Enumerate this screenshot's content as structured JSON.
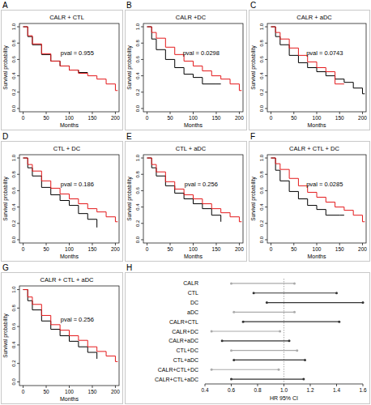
{
  "chart_data": [
    {
      "type": "line",
      "panel_label": "A",
      "title": "CALR + CTL",
      "annotation": "pval = 0.955",
      "x_label": "Months",
      "y_label": "Survival probability",
      "line_style": "step",
      "xlim": [
        -8,
        208
      ],
      "ylim": [
        -0.04,
        1.04
      ],
      "xticks": [
        0,
        50,
        100,
        150,
        200
      ],
      "yticks": [
        {
          "value": 0,
          "label": "0.0"
        },
        0.2,
        0.4,
        0.6,
        0.8,
        {
          "value": 1,
          "label": "1.0"
        }
      ],
      "series": [
        {
          "color": "#000000",
          "x": [
            0,
            10,
            20,
            40,
            60,
            80,
            100,
            120,
            140
          ],
          "values": [
            1,
            0.88,
            0.78,
            0.66,
            0.58,
            0.52,
            0.47,
            0.44,
            0.44
          ]
        },
        {
          "color": "#e41a1c",
          "x": [
            0,
            10,
            20,
            40,
            60,
            80,
            100,
            120,
            140,
            160,
            180,
            200,
            205
          ],
          "values": [
            1,
            0.89,
            0.79,
            0.67,
            0.58,
            0.52,
            0.47,
            0.43,
            0.4,
            0.36,
            0.3,
            0.22,
            0.22
          ]
        }
      ]
    },
    {
      "type": "line",
      "panel_label": "B",
      "title": "CALR +DC",
      "annotation": "pval = 0.0298",
      "x_label": "Months",
      "y_label": "Survival probability",
      "line_style": "step",
      "xlim": [
        -8,
        208
      ],
      "ylim": [
        -0.04,
        1.04
      ],
      "xticks": [
        0,
        50,
        100,
        150,
        200
      ],
      "yticks": [
        {
          "value": 0,
          "label": "0.0"
        },
        0.2,
        0.4,
        0.6,
        0.8,
        {
          "value": 1,
          "label": "1.0"
        }
      ],
      "series": [
        {
          "color": "#000000",
          "x": [
            0,
            10,
            20,
            40,
            60,
            80,
            100,
            120,
            150,
            160
          ],
          "values": [
            1,
            0.85,
            0.72,
            0.6,
            0.5,
            0.42,
            0.38,
            0.3,
            0.3,
            0.3
          ]
        },
        {
          "color": "#e41a1c",
          "x": [
            0,
            10,
            20,
            40,
            60,
            80,
            100,
            120,
            140,
            160,
            180,
            200,
            205
          ],
          "values": [
            1,
            0.93,
            0.86,
            0.75,
            0.66,
            0.58,
            0.52,
            0.46,
            0.4,
            0.36,
            0.3,
            0.22,
            0.22
          ]
        }
      ]
    },
    {
      "type": "line",
      "panel_label": "C",
      "title": "CALR + aDC",
      "annotation": "pval = 0.0743",
      "x_label": "Months",
      "y_label": "Survival probability",
      "line_style": "step",
      "xlim": [
        -8,
        208
      ],
      "ylim": [
        -0.04,
        1.04
      ],
      "xticks": [
        0,
        50,
        100,
        150,
        200
      ],
      "yticks": [
        {
          "value": 0,
          "label": "0.0"
        },
        0.2,
        0.4,
        0.6,
        0.8,
        {
          "value": 1,
          "label": "1.0"
        }
      ],
      "series": [
        {
          "color": "#000000",
          "x": [
            0,
            10,
            20,
            40,
            60,
            80,
            100,
            120,
            140,
            160,
            180,
            200,
            205
          ],
          "values": [
            1,
            0.88,
            0.78,
            0.65,
            0.56,
            0.5,
            0.45,
            0.4,
            0.36,
            0.32,
            0.25,
            0.18,
            0.18
          ]
        },
        {
          "color": "#e41a1c",
          "x": [
            0,
            10,
            20,
            40,
            60,
            80,
            100,
            120,
            140,
            160
          ],
          "values": [
            1,
            0.93,
            0.85,
            0.74,
            0.65,
            0.57,
            0.5,
            0.45,
            0.3,
            0.3
          ]
        }
      ]
    },
    {
      "type": "line",
      "panel_label": "D",
      "title": "CTL + DC",
      "annotation": "pval = 0.186",
      "x_label": "Months",
      "y_label": "Survival probability",
      "line_style": "step",
      "xlim": [
        -8,
        208
      ],
      "ylim": [
        -0.04,
        1.04
      ],
      "xticks": [
        0,
        50,
        100,
        150,
        200
      ],
      "yticks": [
        {
          "value": 0,
          "label": "0.0"
        },
        0.2,
        0.4,
        0.6,
        0.8,
        {
          "value": 1,
          "label": "1.0"
        }
      ],
      "series": [
        {
          "color": "#000000",
          "x": [
            0,
            10,
            20,
            40,
            60,
            80,
            100,
            120,
            140,
            160
          ],
          "values": [
            1,
            0.88,
            0.78,
            0.64,
            0.55,
            0.48,
            0.42,
            0.32,
            0.25,
            0.15
          ]
        },
        {
          "color": "#e41a1c",
          "x": [
            0,
            10,
            20,
            40,
            60,
            80,
            100,
            120,
            140,
            160,
            180,
            200,
            205
          ],
          "values": [
            1,
            0.92,
            0.84,
            0.72,
            0.63,
            0.56,
            0.5,
            0.44,
            0.38,
            0.34,
            0.28,
            0.22,
            0.22
          ]
        }
      ]
    },
    {
      "type": "line",
      "panel_label": "E",
      "title": "CTL + aDC",
      "annotation": "pval = 0.256",
      "x_label": "Months",
      "y_label": "Survival probability",
      "line_style": "step",
      "xlim": [
        -8,
        208
      ],
      "ylim": [
        -0.04,
        1.04
      ],
      "xticks": [
        0,
        50,
        100,
        150,
        200
      ],
      "yticks": [
        {
          "value": 0,
          "label": "0.0"
        },
        0.2,
        0.4,
        0.6,
        0.8,
        {
          "value": 1,
          "label": "1.0"
        }
      ],
      "series": [
        {
          "color": "#000000",
          "x": [
            0,
            10,
            20,
            40,
            60,
            80,
            100,
            120,
            140,
            160
          ],
          "values": [
            1,
            0.88,
            0.78,
            0.66,
            0.57,
            0.5,
            0.44,
            0.38,
            0.3,
            0.22
          ]
        },
        {
          "color": "#e41a1c",
          "x": [
            0,
            10,
            20,
            40,
            60,
            80,
            100,
            120,
            140,
            160,
            180,
            200,
            205
          ],
          "values": [
            1,
            0.92,
            0.83,
            0.71,
            0.62,
            0.55,
            0.5,
            0.44,
            0.38,
            0.33,
            0.28,
            0.22,
            0.22
          ]
        }
      ]
    },
    {
      "type": "line",
      "panel_label": "F",
      "title": "CALR + CTL + DC",
      "annotation": "pval = 0.0285",
      "x_label": "Months",
      "y_label": "Survival probability",
      "line_style": "step",
      "xlim": [
        -8,
        208
      ],
      "ylim": [
        -0.04,
        1.04
      ],
      "xticks": [
        0,
        50,
        100,
        150,
        200
      ],
      "yticks": [
        {
          "value": 0,
          "label": "0.0"
        },
        0.2,
        0.4,
        0.6,
        0.8,
        {
          "value": 1,
          "label": "1.0"
        }
      ],
      "series": [
        {
          "color": "#000000",
          "x": [
            0,
            10,
            20,
            40,
            60,
            80,
            100,
            120,
            150,
            160
          ],
          "values": [
            1,
            0.85,
            0.72,
            0.59,
            0.5,
            0.42,
            0.37,
            0.3,
            0.3,
            0.3
          ]
        },
        {
          "color": "#e41a1c",
          "x": [
            0,
            10,
            20,
            40,
            60,
            80,
            100,
            120,
            140,
            160,
            180,
            200,
            205
          ],
          "values": [
            1,
            0.93,
            0.86,
            0.75,
            0.66,
            0.58,
            0.52,
            0.46,
            0.4,
            0.36,
            0.3,
            0.22,
            0.22
          ]
        }
      ]
    },
    {
      "type": "line",
      "panel_label": "G",
      "title": "CALR + CTL + aDC",
      "annotation": "pval = 0.256",
      "x_label": "Months",
      "y_label": "Survival probability",
      "line_style": "step",
      "xlim": [
        -8,
        208
      ],
      "ylim": [
        -0.04,
        1.04
      ],
      "xticks": [
        0,
        50,
        100,
        150,
        200
      ],
      "yticks": [
        {
          "value": 0,
          "label": "0.0"
        },
        0.2,
        0.4,
        0.6,
        0.8,
        {
          "value": 1,
          "label": "1.0"
        }
      ],
      "series": [
        {
          "color": "#000000",
          "x": [
            0,
            10,
            20,
            40,
            60,
            80,
            100,
            120,
            140,
            160
          ],
          "values": [
            1,
            0.88,
            0.78,
            0.66,
            0.57,
            0.5,
            0.44,
            0.38,
            0.32,
            0.25
          ]
        },
        {
          "color": "#e41a1c",
          "x": [
            0,
            10,
            20,
            40,
            60,
            80,
            100,
            120,
            140,
            160,
            180,
            200,
            205
          ],
          "values": [
            1,
            0.92,
            0.84,
            0.72,
            0.62,
            0.56,
            0.5,
            0.45,
            0.38,
            0.33,
            0.28,
            0.22,
            0.22
          ]
        }
      ]
    },
    {
      "type": "forest",
      "panel_label": "H",
      "x_label": "HR 95% CI",
      "categories": [
        "CALR",
        "CTL",
        "DC",
        "aDC",
        "CALR+CTL",
        "CALR+DC",
        "CALR+aDC",
        "CTL+DC",
        "CTL+aDC",
        "CALR+CTL+DC",
        "CALR+CTL+aDC"
      ],
      "low": [
        0.6,
        0.77,
        0.87,
        0.62,
        0.69,
        0.45,
        0.53,
        0.6,
        0.62,
        0.45,
        0.6
      ],
      "high": [
        1.08,
        1.4,
        1.6,
        1.08,
        1.42,
        0.97,
        1.04,
        1.1,
        1.16,
        0.96,
        1.15
      ],
      "colors": [
        "#aaaaaa",
        "#333333",
        "#333333",
        "#aaaaaa",
        "#333333",
        "#aaaaaa",
        "#333333",
        "#aaaaaa",
        "#333333",
        "#aaaaaa",
        "#333333"
      ],
      "reference_line": 1,
      "xlim": [
        0.4,
        1.6
      ],
      "xticks": [
        0.4,
        0.6,
        0.8,
        {
          "value": 1,
          "label": "1.0"
        },
        1.2,
        1.4,
        1.6
      ]
    }
  ]
}
